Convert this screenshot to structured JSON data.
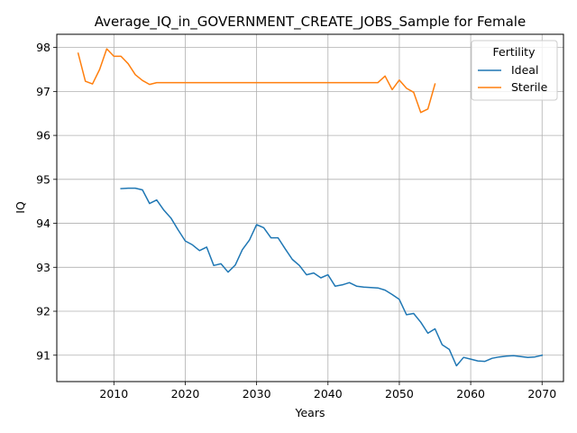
{
  "chart_data": {
    "type": "line",
    "title": "Average_IQ_in_GOVERNMENT_CREATE_JOBS_Sample for Female",
    "xlabel": "Years",
    "ylabel": "IQ",
    "xlim": [
      2002,
      2073
    ],
    "ylim": [
      90.4,
      98.3
    ],
    "xticks": [
      2010,
      2020,
      2030,
      2040,
      2050,
      2060,
      2070
    ],
    "yticks": [
      91,
      92,
      93,
      94,
      95,
      96,
      97,
      98
    ],
    "grid": true,
    "legend": {
      "title": "Fertility",
      "placement": "top-right"
    },
    "series": [
      {
        "name": "Ideal",
        "color": "#1f77b4",
        "x": [
          2011,
          2012,
          2013,
          2014,
          2015,
          2016,
          2017,
          2018,
          2019,
          2020,
          2021,
          2022,
          2023,
          2024,
          2025,
          2026,
          2027,
          2028,
          2029,
          2030,
          2031,
          2032,
          2033,
          2034,
          2035,
          2036,
          2037,
          2038,
          2039,
          2040,
          2041,
          2042,
          2043,
          2044,
          2045,
          2046,
          2047,
          2048,
          2049,
          2050,
          2051,
          2052,
          2053,
          2054,
          2055,
          2056,
          2057,
          2058,
          2059,
          2060,
          2061,
          2062,
          2063,
          2064,
          2065,
          2066,
          2067,
          2068,
          2069,
          2070
        ],
        "y": [
          94.79,
          94.8,
          94.8,
          94.76,
          94.45,
          94.53,
          94.3,
          94.12,
          93.85,
          93.6,
          93.51,
          93.38,
          93.46,
          93.04,
          93.08,
          92.89,
          93.05,
          93.4,
          93.62,
          93.97,
          93.9,
          93.67,
          93.67,
          93.42,
          93.18,
          93.04,
          92.83,
          92.87,
          92.76,
          92.83,
          92.57,
          92.6,
          92.65,
          92.57,
          92.55,
          92.54,
          92.53,
          92.48,
          92.38,
          92.27,
          91.92,
          91.95,
          91.75,
          91.5,
          91.6,
          91.24,
          91.13,
          90.76,
          90.95,
          90.91,
          90.87,
          90.86,
          90.93,
          90.96,
          90.98,
          90.99,
          90.97,
          90.95,
          90.96,
          91.0
        ]
      },
      {
        "name": "Sterile",
        "color": "#ff7f0e",
        "x": [
          2005,
          2006,
          2007,
          2008,
          2009,
          2010,
          2011,
          2012,
          2013,
          2014,
          2015,
          2016,
          2017,
          2018,
          2019,
          2020,
          2021,
          2022,
          2023,
          2024,
          2025,
          2026,
          2027,
          2028,
          2029,
          2030,
          2031,
          2032,
          2033,
          2034,
          2035,
          2036,
          2037,
          2038,
          2039,
          2040,
          2041,
          2042,
          2043,
          2044,
          2045,
          2046,
          2047,
          2048,
          2049,
          2050,
          2051,
          2052,
          2053,
          2054,
          2055
        ],
        "y": [
          97.87,
          97.23,
          97.17,
          97.5,
          97.97,
          97.8,
          97.8,
          97.63,
          97.38,
          97.25,
          97.16,
          97.2,
          97.2,
          97.2,
          97.2,
          97.2,
          97.2,
          97.2,
          97.2,
          97.2,
          97.2,
          97.2,
          97.2,
          97.2,
          97.2,
          97.2,
          97.2,
          97.2,
          97.2,
          97.2,
          97.2,
          97.2,
          97.2,
          97.2,
          97.2,
          97.2,
          97.2,
          97.2,
          97.2,
          97.2,
          97.2,
          97.2,
          97.2,
          97.35,
          97.04,
          97.26,
          97.07,
          96.98,
          96.52,
          96.6,
          97.17
        ]
      }
    ]
  }
}
